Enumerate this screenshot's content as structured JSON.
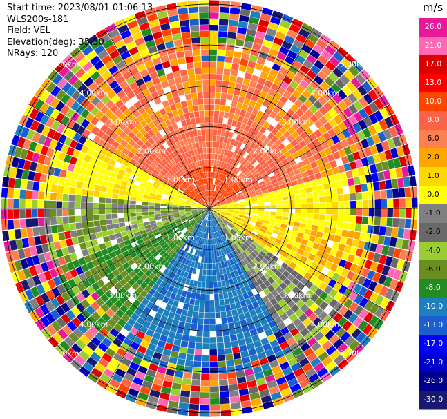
{
  "header": {
    "start_time": "Start time: 2023/08/01 01:06:13",
    "instrument": "WLS200s-181",
    "field": "Field: VEL",
    "elevation": "Elevation(deg): 35.30",
    "nrays": "NRays: 120"
  },
  "chart_data": {
    "type": "heatmap",
    "projection": "polar-ppi",
    "field": "VEL",
    "units": "m/s",
    "nrays": 120,
    "range_rings_km": [
      1.0,
      2.0,
      3.0,
      4.0,
      5.0
    ],
    "range_ring_labels": [
      "1.00km",
      "2.00km",
      "3.00km",
      "4.00km",
      "5.00km"
    ],
    "max_range_km": 5.1,
    "grid": true,
    "colorbar": {
      "title": "m/s",
      "tick_labels": [
        "26.0",
        "21.0",
        "17.0",
        "13.0",
        "10.0",
        "8.0",
        "6.0",
        "2.0",
        "1.0",
        "0.0",
        "-1.0",
        "-2.0",
        "-4.0",
        "-6.0",
        "-8.0",
        "-10.0",
        "-13.0",
        "-17.0",
        "-21.0",
        "-26.0",
        "-30.0"
      ],
      "colors": [
        "#e8189a",
        "#ff69b4",
        "#dd0000",
        "#ff0000",
        "#ff4500",
        "#ff6347",
        "#ff7f50",
        "#ffa500",
        "#ffd700",
        "#ffff00",
        "#808080",
        "#696969",
        "#9acd32",
        "#6b8e23",
        "#228b22",
        "#1e7fbf",
        "#1a5fd0",
        "#0000ff",
        "#0000cd",
        "#00008b",
        "#191970"
      ]
    }
  }
}
